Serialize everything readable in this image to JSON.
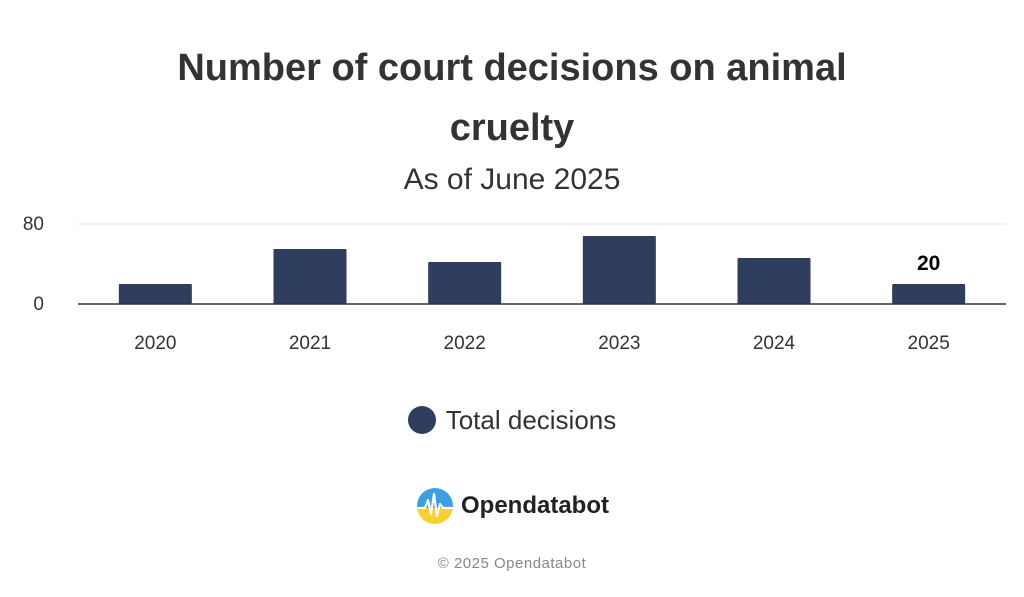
{
  "chart_data": {
    "type": "bar",
    "title": "Number of court decisions on animal cruelty",
    "subtitle": "As of June 2025",
    "categories": [
      "2020",
      "2021",
      "2022",
      "2023",
      "2024",
      "2025"
    ],
    "series": [
      {
        "name": "Total decisions",
        "values": [
          20,
          55,
          42,
          68,
          46,
          20
        ],
        "color": "#2f3d5e"
      }
    ],
    "data_labels": [
      {
        "category": "2025",
        "text": "20"
      }
    ],
    "y_ticks": [
      "0",
      "80"
    ],
    "ylim": [
      0,
      80
    ],
    "xlabel": "",
    "ylabel": "",
    "legend_position": "bottom",
    "grid": true
  },
  "brand": {
    "name": "Opendatabot",
    "logo_icon": "opendatabot-logo-icon"
  },
  "credits": "© 2025 Opendatabot"
}
